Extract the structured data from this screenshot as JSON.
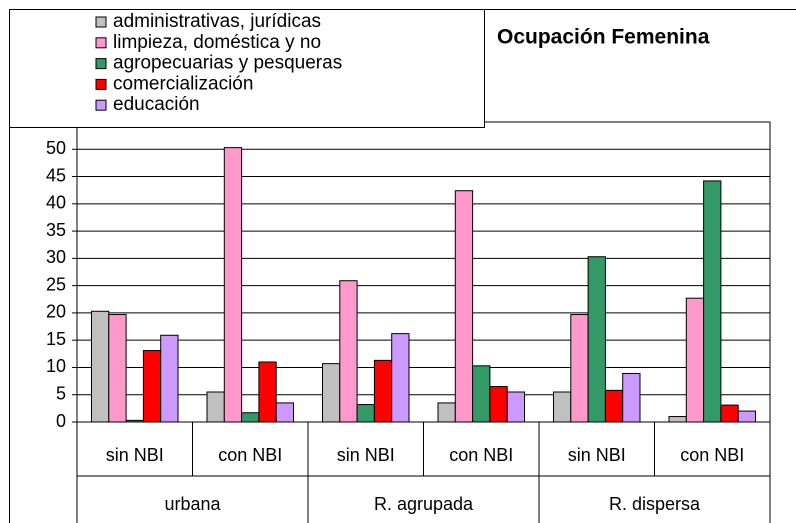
{
  "chart_data": {
    "type": "bar",
    "title": "Ocupación Femenina",
    "categories": [
      "sin NBI",
      "con NBI",
      "sin NBI",
      "con NBI",
      "sin NBI",
      "con NBI"
    ],
    "groups": [
      "urbana",
      "R. agrupada",
      "R. dispersa"
    ],
    "series": [
      {
        "name": "administrativas, jurídicas",
        "color": "#c0c0c0",
        "values": [
          20.3,
          5.5,
          10.7,
          3.5,
          5.5,
          1
        ]
      },
      {
        "name": "limpieza, doméstica y no",
        "color": "#ff99cc",
        "values": [
          19.7,
          50.3,
          25.9,
          42.4,
          19.7,
          22.7
        ]
      },
      {
        "name": "agropecuarias y pesqueras",
        "color": "#339966",
        "values": [
          0.3,
          1.7,
          3.2,
          10.3,
          30.3,
          44.2
        ]
      },
      {
        "name": "comercialización",
        "color": "#ff0000",
        "values": [
          13.1,
          11,
          11.3,
          6.5,
          5.8,
          3.1
        ]
      },
      {
        "name": "educación",
        "color": "#cc99ff",
        "values": [
          15.9,
          3.5,
          16.2,
          5.5,
          8.9,
          2
        ]
      }
    ],
    "ylim": [
      0,
      55
    ],
    "yticks": [
      0,
      5,
      10,
      15,
      20,
      25,
      30,
      35,
      40,
      45,
      50
    ],
    "grid": true
  }
}
